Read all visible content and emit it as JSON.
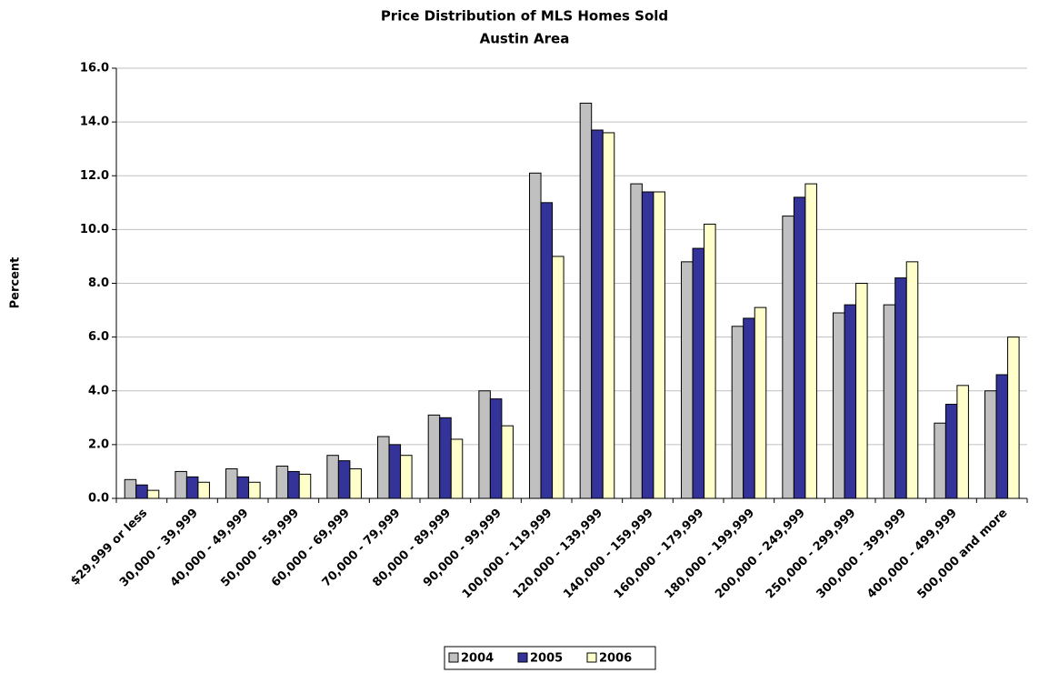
{
  "chart_data": {
    "type": "bar",
    "title": "Price Distribution of MLS Homes Sold",
    "subtitle": "Austin Area",
    "y_label": "Percent",
    "categories": [
      "$29,999 or less",
      "30,000 - 39,999",
      "40,000 - 49,999",
      "50,000 - 59,999",
      "60,000 - 69,999",
      "70,000 - 79,999",
      "80,000 - 89,999",
      "90,000 - 99,999",
      "100,000 - 119,999",
      "120,000 - 139,999",
      "140,000 - 159,999",
      "160,000 - 179,999",
      "180,000 - 199,999",
      "200,000 - 249,999",
      "250,000 - 299,999",
      "300,000 - 399,999",
      "400,000 - 499,999",
      "500,000 and more"
    ],
    "series": [
      {
        "name": "2004",
        "color": "#c0c0c0",
        "values": [
          0.7,
          1.0,
          1.1,
          1.2,
          1.6,
          2.3,
          3.1,
          4.0,
          12.1,
          14.7,
          11.7,
          8.8,
          6.4,
          10.5,
          6.9,
          7.2,
          2.8,
          4.0
        ]
      },
      {
        "name": "2005",
        "color": "#333399",
        "values": [
          0.5,
          0.8,
          0.8,
          1.0,
          1.4,
          2.0,
          3.0,
          3.7,
          11.0,
          13.7,
          11.4,
          9.3,
          6.7,
          11.2,
          7.2,
          8.2,
          3.5,
          4.6
        ]
      },
      {
        "name": "2006",
        "color": "#ffffcc",
        "values": [
          0.3,
          0.6,
          0.6,
          0.9,
          1.1,
          1.6,
          2.2,
          2.7,
          9.0,
          13.6,
          11.4,
          10.2,
          7.1,
          11.7,
          8.0,
          8.8,
          4.2,
          6.0
        ]
      }
    ],
    "ylim": [
      0,
      16
    ],
    "yticks": [
      {
        "value": 0,
        "label": "0.0"
      },
      {
        "value": 2,
        "label": "2.0"
      },
      {
        "value": 4,
        "label": "4.0"
      },
      {
        "value": 6,
        "label": "6.0"
      },
      {
        "value": 8,
        "label": "8.0"
      },
      {
        "value": 10,
        "label": "10.0"
      },
      {
        "value": 12,
        "label": "12.0"
      },
      {
        "value": 14,
        "label": "14.0"
      },
      {
        "value": 16,
        "label": "16.0"
      }
    ],
    "grid": true,
    "legend": "bottom"
  }
}
